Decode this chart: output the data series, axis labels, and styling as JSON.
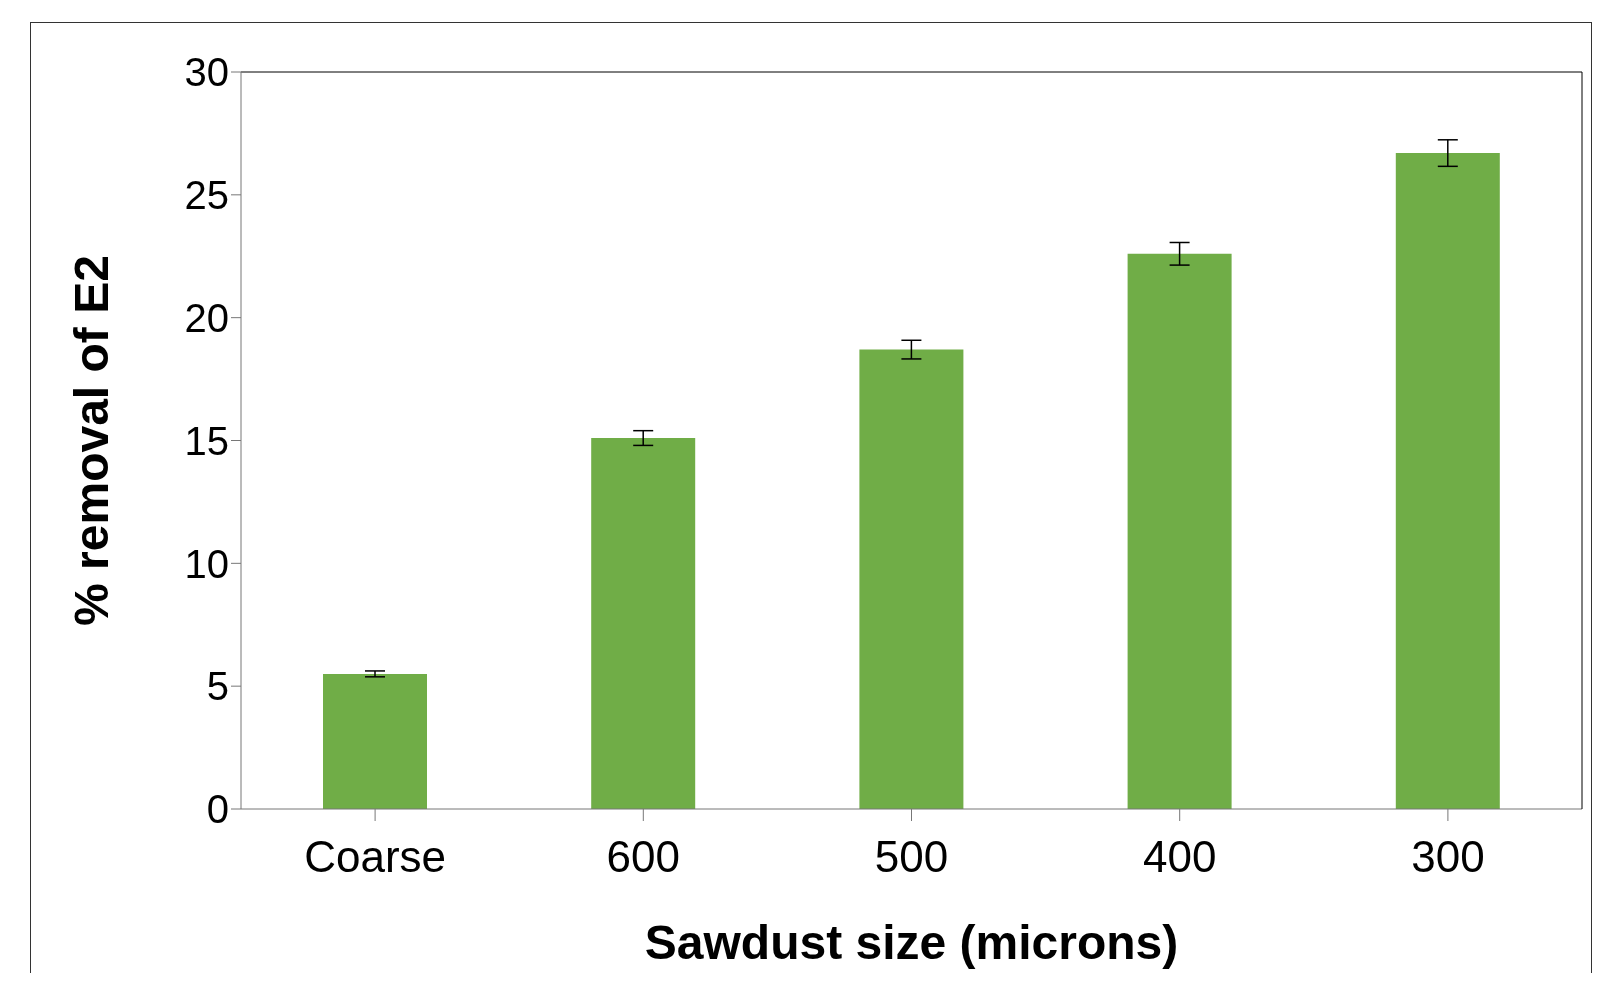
{
  "chart_data": {
    "type": "bar",
    "xlabel": "Sawdust size (microns)",
    "ylabel": "% removal of E2",
    "categories": [
      "Coarse",
      "600",
      "500",
      "400",
      "300"
    ],
    "values": [
      5.5,
      15.1,
      18.7,
      22.6,
      26.7
    ],
    "errors": [
      0.12,
      0.3,
      0.38,
      0.46,
      0.54
    ],
    "color": "#70ad47",
    "ylim": [
      0,
      30
    ],
    "yticks": [
      0,
      5,
      10,
      15,
      20,
      25,
      30
    ],
    "grid": false,
    "legend": false
  }
}
